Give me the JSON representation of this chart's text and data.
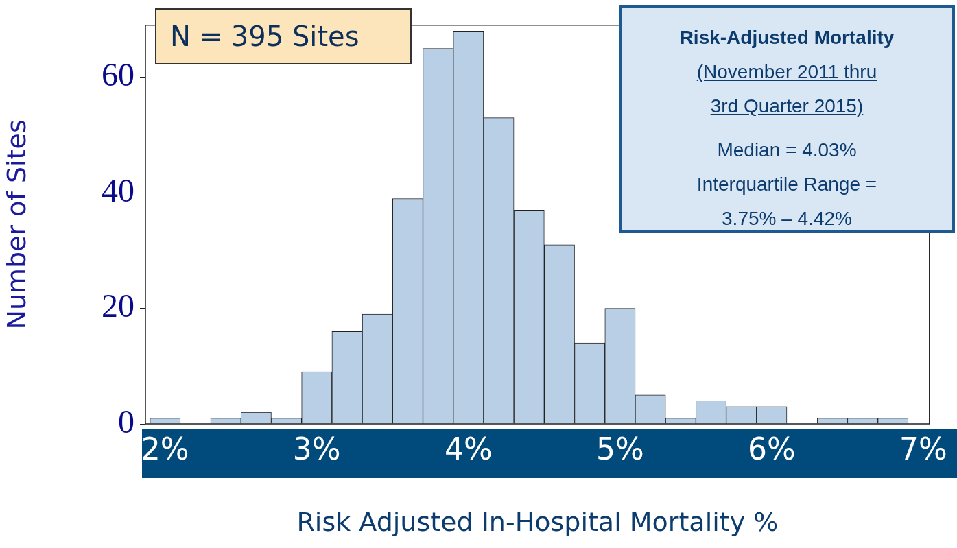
{
  "chart_data": {
    "type": "histogram",
    "xlabel": "Risk Adjusted In-Hospital Mortality %",
    "ylabel": "Number of Sites",
    "bins": [
      1.9,
      2.1,
      2.3,
      2.5,
      2.7,
      2.9,
      3.1,
      3.3,
      3.5,
      3.7,
      3.9,
      4.1,
      4.3,
      4.5,
      4.7,
      4.9,
      5.1,
      5.3,
      5.5,
      5.7,
      5.9,
      6.1,
      6.3,
      6.5,
      6.7,
      6.9
    ],
    "values": [
      1,
      0,
      1,
      2,
      1,
      9,
      16,
      19,
      39,
      65,
      68,
      53,
      37,
      31,
      14,
      20,
      5,
      1,
      4,
      3,
      3,
      0,
      1,
      1,
      1
    ],
    "color": "#b9cfe6",
    "xlim": [
      1.87,
      7.04
    ],
    "xticks": [
      {
        "value": 2,
        "label": "2%"
      },
      {
        "value": 3,
        "label": "3%"
      },
      {
        "value": 4,
        "label": "4%"
      },
      {
        "value": 5,
        "label": "5%"
      },
      {
        "value": 6,
        "label": "6%"
      },
      {
        "value": 7,
        "label": "7%"
      }
    ],
    "ylim": [
      0,
      69
    ],
    "yticks": [
      0,
      20,
      40,
      60
    ],
    "grid": false,
    "legend": false,
    "annotations": [
      "N = 395 Sites",
      "Risk-Adjusted Mortality",
      "(November 2011 thru 3rd Quarter 2015)",
      "Median = 4.03%",
      "Interquartile Range = 3.75% – 4.42%"
    ]
  }
}
